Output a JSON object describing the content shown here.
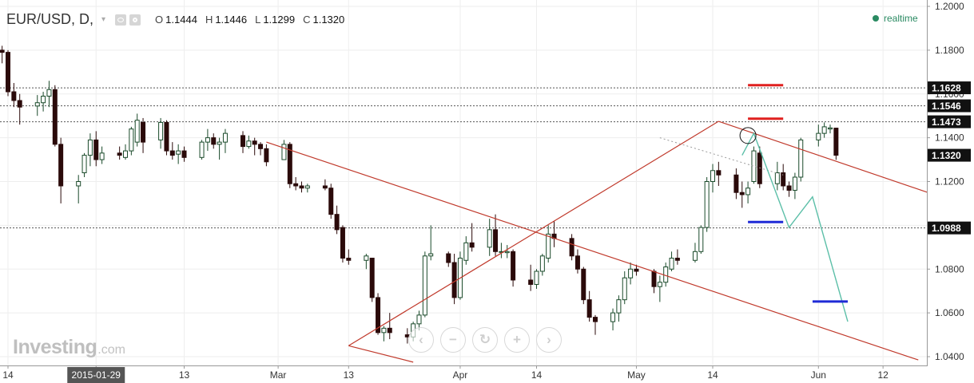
{
  "header": {
    "symbol": "EUR/USD, D,",
    "caret": "▾",
    "open_label": "O",
    "open": "1.1444",
    "high_label": "H",
    "high": "1.1446",
    "low_label": "L",
    "low": "1.1299",
    "close_label": "C",
    "close": "1.1320",
    "status": "realtime"
  },
  "logo": {
    "brand": "Investing",
    "suffix": ".com"
  },
  "zoom_controls": [
    {
      "name": "scroll-left-button",
      "glyph": "‹"
    },
    {
      "name": "zoom-out-button",
      "glyph": "−"
    },
    {
      "name": "reset-button",
      "glyph": "↻"
    },
    {
      "name": "zoom-in-button",
      "glyph": "+"
    },
    {
      "name": "scroll-right-button",
      "glyph": "›"
    }
  ],
  "chart_data": {
    "type": "candlestick",
    "title": "EUR/USD, D,",
    "ylim": [
      1.0375,
      1.2015
    ],
    "y_ticks": [
      "1.2000",
      "1.1800",
      "1.1600",
      "1.1400",
      "1.1200",
      "1.1000",
      "1.0800",
      "1.0600",
      "1.0400"
    ],
    "x_ticks": [
      {
        "label": "14",
        "date": "2015-01-14"
      },
      {
        "label": "2015-01-29",
        "date": "2015-01-29",
        "highlight": true
      },
      {
        "label": "13",
        "date": "2015-02-13"
      },
      {
        "label": "Mar",
        "date": "2015-03-01"
      },
      {
        "label": "13",
        "date": "2015-03-13"
      },
      {
        "label": "Apr",
        "date": "2015-04-01"
      },
      {
        "label": "14",
        "date": "2015-04-14"
      },
      {
        "label": "May",
        "date": "2015-05-01"
      },
      {
        "label": "14",
        "date": "2015-05-14"
      },
      {
        "label": "Jun",
        "date": "2015-06-01"
      },
      {
        "label": "12",
        "date": "2015-06-12"
      }
    ],
    "first_date": "2015-01-12",
    "candles": [
      [
        1.1845,
        1.187,
        1.178,
        1.18
      ],
      [
        1.18,
        1.182,
        1.174,
        1.179
      ],
      [
        1.179,
        1.18,
        1.159,
        1.161
      ],
      [
        1.161,
        1.165,
        1.154,
        1.157
      ],
      [
        1.157,
        1.16,
        1.146,
        1.154
      ],
      [
        1.1545,
        1.1595,
        1.15,
        1.156
      ],
      [
        1.156,
        1.161,
        1.152,
        1.159
      ],
      [
        1.159,
        1.166,
        1.154,
        1.162
      ],
      [
        1.162,
        1.164,
        1.136,
        1.137
      ],
      [
        1.137,
        1.14,
        1.11,
        1.118
      ],
      [
        1.118,
        1.123,
        1.11,
        1.12
      ],
      [
        1.124,
        1.133,
        1.122,
        1.132
      ],
      [
        1.132,
        1.142,
        1.127,
        1.139
      ],
      [
        1.139,
        1.143,
        1.127,
        1.13
      ],
      [
        1.13,
        1.136,
        1.128,
        1.133
      ],
      [
        1.133,
        1.136,
        1.13,
        1.132
      ],
      [
        1.131,
        1.137,
        1.13,
        1.134
      ],
      [
        1.134,
        1.145,
        1.132,
        1.144
      ],
      [
        1.138,
        1.151,
        1.136,
        1.148
      ],
      [
        1.147,
        1.149,
        1.133,
        1.138
      ],
      [
        1.139,
        1.149,
        1.135,
        1.147
      ],
      [
        1.147,
        1.148,
        1.132,
        1.134
      ],
      [
        1.134,
        1.138,
        1.13,
        1.132
      ],
      [
        1.1325,
        1.137,
        1.128,
        1.134
      ],
      [
        1.134,
        1.136,
        1.129,
        1.131
      ],
      [
        1.131,
        1.139,
        1.13,
        1.138
      ],
      [
        1.138,
        1.144,
        1.134,
        1.14
      ],
      [
        1.14,
        1.142,
        1.135,
        1.137
      ],
      [
        1.137,
        1.14,
        1.13,
        1.138
      ],
      [
        1.138,
        1.144,
        1.133,
        1.142
      ],
      [
        1.141,
        1.143,
        1.133,
        1.136
      ],
      [
        1.136,
        1.141,
        1.135,
        1.1385
      ],
      [
        1.1385,
        1.14,
        1.132,
        1.137
      ],
      [
        1.137,
        1.138,
        1.132,
        1.135
      ],
      [
        1.135,
        1.137,
        1.127,
        1.129
      ],
      [
        1.13,
        1.139,
        1.13,
        1.137
      ],
      [
        1.137,
        1.138,
        1.117,
        1.119
      ],
      [
        1.119,
        1.122,
        1.116,
        1.118
      ],
      [
        1.118,
        1.12,
        1.115,
        1.117
      ],
      [
        1.117,
        1.119,
        1.115,
        1.118
      ],
      [
        1.118,
        1.121,
        1.116,
        1.117
      ],
      [
        1.117,
        1.119,
        1.103,
        1.105
      ],
      [
        1.105,
        1.109,
        1.096,
        1.098
      ],
      [
        1.099,
        1.1,
        1.083,
        1.085
      ],
      [
        1.085,
        1.089,
        1.082,
        1.084
      ],
      [
        1.084,
        1.087,
        1.08,
        1.086
      ],
      [
        1.085,
        1.085,
        1.065,
        1.067
      ],
      [
        1.067,
        1.069,
        1.05,
        1.051
      ],
      [
        1.051,
        1.054,
        1.047,
        1.053
      ],
      [
        1.053,
        1.06,
        1.048,
        1.051
      ],
      [
        1.05,
        1.053,
        1.046,
        1.049
      ],
      [
        1.049,
        1.056,
        1.047,
        1.055
      ],
      [
        1.055,
        1.061,
        1.052,
        1.059
      ],
      [
        1.059,
        1.088,
        1.058,
        1.086
      ],
      [
        1.086,
        1.1,
        1.084,
        1.087
      ],
      [
        1.087,
        1.088,
        1.081,
        1.083
      ],
      [
        1.083,
        1.087,
        1.064,
        1.067
      ],
      [
        1.067,
        1.088,
        1.066,
        1.085
      ],
      [
        1.084,
        1.095,
        1.082,
        1.092
      ],
      [
        1.092,
        1.101,
        1.088,
        1.09
      ],
      [
        1.09,
        1.103,
        1.086,
        1.098
      ],
      [
        1.098,
        1.105,
        1.086,
        1.088
      ],
      [
        1.088,
        1.092,
        1.085,
        1.088
      ],
      [
        1.0875,
        1.091,
        1.085,
        1.088
      ],
      [
        1.088,
        1.089,
        1.072,
        1.075
      ],
      [
        1.075,
        1.082,
        1.07,
        1.073
      ],
      [
        1.073,
        1.08,
        1.071,
        1.079
      ],
      [
        1.079,
        1.087,
        1.077,
        1.086
      ],
      [
        1.085,
        1.1,
        1.083,
        1.096
      ],
      [
        1.096,
        1.102,
        1.09,
        1.094
      ],
      [
        1.094,
        1.096,
        1.084,
        1.086
      ],
      [
        1.086,
        1.089,
        1.078,
        1.08
      ],
      [
        1.08,
        1.081,
        1.064,
        1.066
      ],
      [
        1.066,
        1.07,
        1.056,
        1.058
      ],
      [
        1.058,
        1.059,
        1.05,
        1.056
      ],
      [
        1.056,
        1.062,
        1.052,
        1.06
      ],
      [
        1.06,
        1.068,
        1.056,
        1.066
      ],
      [
        1.066,
        1.079,
        1.064,
        1.076
      ],
      [
        1.076,
        1.083,
        1.073,
        1.08
      ],
      [
        1.08,
        1.082,
        1.077,
        1.079
      ],
      [
        1.079,
        1.08,
        1.069,
        1.072
      ],
      [
        1.072,
        1.077,
        1.065,
        1.074
      ],
      [
        1.074,
        1.083,
        1.072,
        1.081
      ],
      [
        1.08,
        1.088,
        1.079,
        1.085
      ],
      [
        1.085,
        1.089,
        1.082,
        1.084
      ],
      [
        1.084,
        1.092,
        1.083,
        1.088
      ],
      [
        1.088,
        1.1,
        1.087,
        1.099
      ],
      [
        1.099,
        1.122,
        1.097,
        1.12
      ],
      [
        1.12,
        1.128,
        1.115,
        1.125
      ],
      [
        1.125,
        1.129,
        1.118,
        1.123
      ],
      [
        1.123,
        1.126,
        1.112,
        1.115
      ],
      [
        1.115,
        1.12,
        1.108,
        1.114
      ],
      [
        1.114,
        1.12,
        1.11,
        1.117
      ],
      [
        1.12,
        1.136,
        1.119,
        1.134
      ],
      [
        1.133,
        1.136,
        1.117,
        1.119
      ],
      [
        1.119,
        1.129,
        1.116,
        1.124
      ],
      [
        1.124,
        1.128,
        1.116,
        1.118
      ],
      [
        1.118,
        1.12,
        1.113,
        1.116
      ],
      [
        1.116,
        1.124,
        1.112,
        1.122
      ],
      [
        1.122,
        1.14,
        1.12,
        1.139
      ],
      [
        1.139,
        1.146,
        1.136,
        1.142
      ],
      [
        1.142,
        1.147,
        1.14,
        1.145
      ],
      [
        1.144,
        1.146,
        1.142,
        1.1445
      ],
      [
        1.1444,
        1.1446,
        1.1299,
        1.132
      ]
    ],
    "price_labels": [
      {
        "value": 1.1628,
        "text": "1.1628"
      },
      {
        "value": 1.1546,
        "text": "1.1546"
      },
      {
        "value": 1.1473,
        "text": "1.1473"
      },
      {
        "value": 1.132,
        "text": "1.1320",
        "current": true
      },
      {
        "value": 1.0988,
        "text": "1.0988"
      }
    ],
    "channel_lines": [
      [
        {
          "date": "2015-02-27",
          "value": 1.138
        },
        {
          "date": "2015-06-18",
          "value": 1.0385
        }
      ],
      [
        {
          "date": "2015-03-13",
          "value": 1.045
        },
        {
          "date": "2015-05-15",
          "value": 1.1475
        }
      ],
      [
        {
          "date": "2015-05-15",
          "value": 1.1475
        },
        {
          "date": "2015-06-24",
          "value": 1.111
        }
      ],
      [
        {
          "date": "2015-03-13",
          "value": 1.045
        },
        {
          "date": "2015-03-24",
          "value": 1.0375
        }
      ]
    ],
    "trend_line_dotted": [
      {
        "date": "2015-05-05",
        "value": 1.14
      },
      {
        "date": "2015-05-26",
        "value": 1.123
      }
    ],
    "projection_path": [
      {
        "date": "2015-05-19",
        "value": 1.132
      },
      {
        "date": "2015-05-21",
        "value": 1.142
      },
      {
        "date": "2015-05-27",
        "value": 1.099
      },
      {
        "date": "2015-05-31",
        "value": 1.113
      },
      {
        "date": "2015-06-06",
        "value": 1.056
      }
    ],
    "target_marks": [
      {
        "color": "#e0201f",
        "value": 1.164,
        "from": "2015-05-20",
        "to": "2015-05-26"
      },
      {
        "color": "#e0201f",
        "value": 1.1487,
        "from": "2015-05-20",
        "to": "2015-05-26"
      },
      {
        "color": "#1f2ad6",
        "value": 1.1015,
        "from": "2015-05-20",
        "to": "2015-05-26"
      },
      {
        "color": "#1f2ad6",
        "value": 1.0652,
        "from": "2015-05-31",
        "to": "2015-06-06"
      }
    ],
    "circle_marker": {
      "date": "2015-05-20",
      "value": 1.141
    },
    "colors": {
      "up_fill": "#ffffff",
      "up_stroke": "#1a4a2a",
      "down_fill": "#2b0a0a",
      "down_stroke": "#2b0a0a",
      "channel": "#c0392b",
      "projection": "#5cbfa8",
      "grid": "#eeeeee",
      "dotted_line": "#555555"
    }
  }
}
